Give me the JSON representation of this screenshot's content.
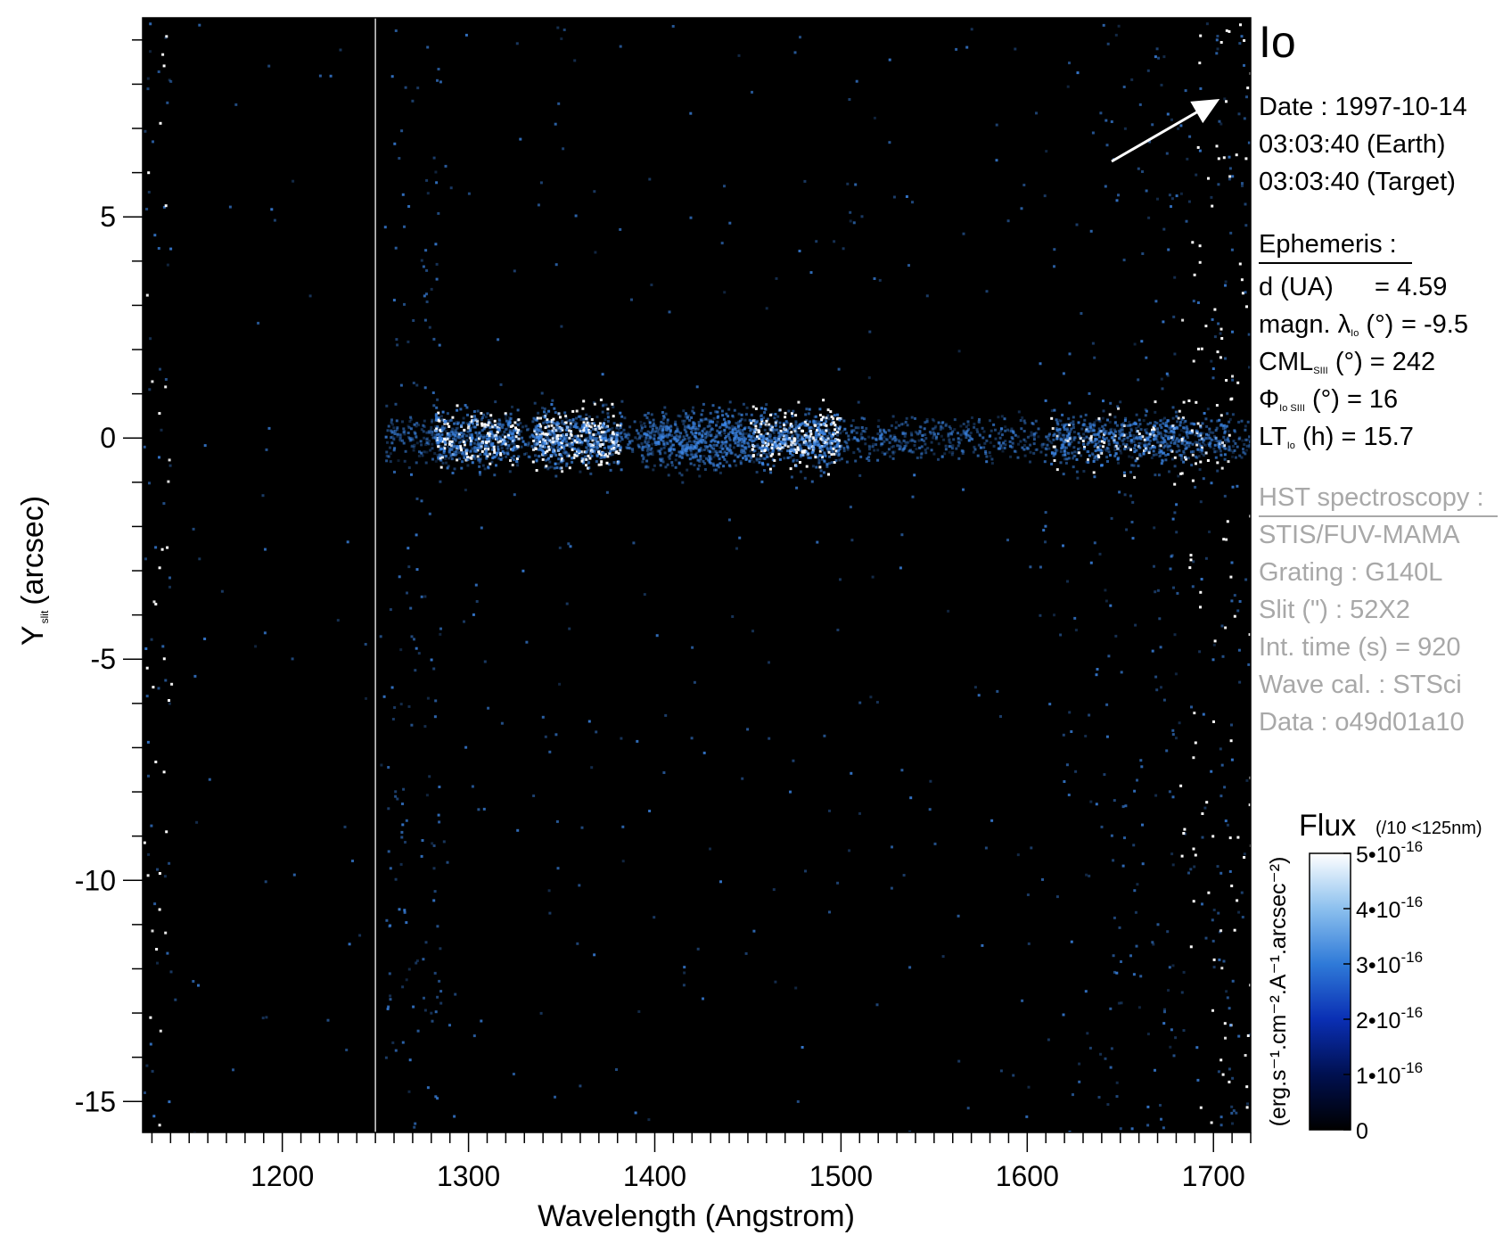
{
  "target_name": "Io",
  "observation": {
    "date_line": "Date : 1997-10-14",
    "earth_time": "03:03:40 (Earth)",
    "target_time": "03:03:40 (Target)"
  },
  "ephemeris": {
    "heading": "Ephemeris :",
    "distance": {
      "label": "d (UA)",
      "value": "= 4.59"
    },
    "magn_lat": {
      "label": "magn. λ",
      "sub": "Io",
      "unit": "(°)",
      "value": "= -9.5"
    },
    "cml": {
      "label": "CML",
      "sub": "SIII",
      "unit": "(°)",
      "value": "= 242"
    },
    "phi": {
      "label": "Φ",
      "sub": "Io SIII",
      "unit": "(°)",
      "value": "= 16"
    },
    "lt": {
      "label": "LT",
      "sub": "Io",
      "unit": "(h)",
      "value": "= 15.7"
    }
  },
  "hst": {
    "heading": "HST spectroscopy :",
    "instrument": "STIS/FUV-MAMA",
    "grating": "Grating : G140L",
    "slit": "Slit (\") : 52X2",
    "int_time": "Int. time (s) = 920",
    "wave_cal": "Wave cal. : STSci",
    "data_id": "Data : o49d01a10"
  },
  "colorbar": {
    "title": "Flux",
    "note": "(/10 <125nm)",
    "unit_label": "(erg.s⁻¹.cm⁻².A⁻¹.arcsec⁻²)",
    "ticks": [
      {
        "value": 5e-16,
        "mant": "5•10",
        "exp": "-16"
      },
      {
        "value": 4e-16,
        "mant": "4•10",
        "exp": "-16"
      },
      {
        "value": 3e-16,
        "mant": "3•10",
        "exp": "-16"
      },
      {
        "value": 2e-16,
        "mant": "2•10",
        "exp": "-16"
      },
      {
        "value": 1e-16,
        "mant": "1•10",
        "exp": "-16"
      },
      {
        "value": 0,
        "mant": "0",
        "exp": ""
      }
    ],
    "range": [
      0,
      5e-16
    ],
    "colors": [
      "#000000",
      "#001050",
      "#0a2fb4",
      "#2f7ad8",
      "#8cc0ee",
      "#ffffff"
    ]
  },
  "colors": {
    "background": "#000000",
    "emission": "#3c86e6",
    "arrow": "#ffffff",
    "panel_grey": "#a8a8a8"
  },
  "chart_data": {
    "type": "heatmap",
    "xlabel": "Wavelength (Angstrom)",
    "ylabel": "Y",
    "ylabel_sub": "slit",
    "ylabel_unit": "(arcsec)",
    "xlim": [
      1125,
      1720
    ],
    "ylim": [
      -15.7,
      9.5
    ],
    "xticks": [
      1200,
      1300,
      1400,
      1500,
      1600,
      1700
    ],
    "yticks": [
      5,
      0,
      -5,
      -10,
      -15
    ],
    "x_minor_step": 10,
    "y_minor_step": 1,
    "reference_line_wavelength": 1250,
    "arrow_direction_deg": 30,
    "emission_features": [
      {
        "center": 1304,
        "width": 28,
        "strength": 0.9
      },
      {
        "center": 1358,
        "width": 30,
        "strength": 1.0
      },
      {
        "center": 1408,
        "width": 20,
        "strength": 0.45
      },
      {
        "center": 1434,
        "width": 22,
        "strength": 0.55
      },
      {
        "center": 1475,
        "width": 30,
        "strength": 1.0
      },
      {
        "center": 1660,
        "width": 60,
        "strength": 0.8
      }
    ]
  }
}
